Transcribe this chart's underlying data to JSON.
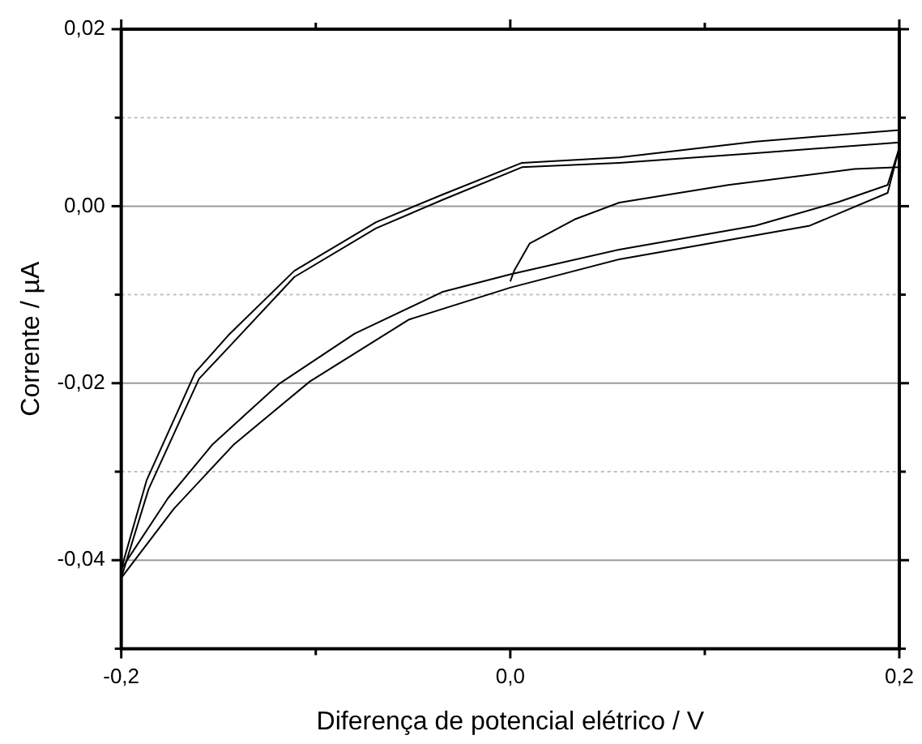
{
  "chart_data": {
    "type": "line",
    "xlabel": "Diferença de potencial elétrico / V",
    "ylabel": "Corrente / µA",
    "xlim": [
      -0.2,
      0.2
    ],
    "ylim": [
      -0.05,
      0.02
    ],
    "xticks": [
      {
        "value": -0.2,
        "label": "-0,2"
      },
      {
        "value": -0.1,
        "label": null
      },
      {
        "value": 0,
        "label": "0,0"
      },
      {
        "value": 0.1,
        "label": null
      },
      {
        "value": 0.2,
        "label": "0,2"
      }
    ],
    "yticks": [
      {
        "value": -0.05,
        "label": null
      },
      {
        "value": -0.04,
        "label": "-0,04"
      },
      {
        "value": -0.03,
        "label": null
      },
      {
        "value": -0.02,
        "label": "-0,02"
      },
      {
        "value": -0.01,
        "label": null
      },
      {
        "value": 0,
        "label": "0,00"
      },
      {
        "value": 0.01,
        "label": null
      },
      {
        "value": 0.02,
        "label": "0,02"
      }
    ],
    "grid": "y",
    "legend": false,
    "marker": "none",
    "line_style": "solid",
    "series": [
      {
        "color": "#000000",
        "x": [
          0,
          0.002,
          0.01,
          0.033,
          0.056,
          0.112,
          0.177,
          0.2
        ],
        "values": [
          -0.0085,
          -0.0073,
          -0.0042,
          -0.0015,
          0.0004,
          0.0024,
          0.0042,
          0.0044
        ]
      },
      {
        "color": "#000000",
        "x": [
          0.2,
          0.194,
          0.169,
          0.126,
          0.056,
          0,
          -0.035,
          -0.08,
          -0.119,
          -0.153,
          -0.176,
          -0.2
        ],
        "values": [
          0.0066,
          0.0024,
          0.0005,
          -0.0022,
          -0.0049,
          -0.0077,
          -0.0097,
          -0.0144,
          -0.0201,
          -0.0269,
          -0.033,
          -0.041
        ]
      },
      {
        "color": "#000000",
        "x": [
          0.2,
          0.194,
          0.154,
          0.056,
          0,
          -0.052,
          -0.103,
          -0.142,
          -0.173,
          -0.2
        ],
        "values": [
          0.0066,
          0.0015,
          -0.0022,
          -0.006,
          -0.0092,
          -0.0128,
          -0.0198,
          -0.0269,
          -0.0342,
          -0.042
        ]
      },
      {
        "color": "#000000",
        "x": [
          -0.2,
          -0.187,
          -0.162,
          -0.145,
          -0.111,
          -0.069,
          -0.035,
          0.006,
          0.056,
          0.126,
          0.2
        ],
        "values": [
          -0.041,
          -0.031,
          -0.0188,
          -0.0146,
          -0.0073,
          -0.0018,
          0.0013,
          0.0049,
          0.0055,
          0.0073,
          0.0086
        ]
      },
      {
        "color": "#000000",
        "x": [
          -0.2,
          -0.186,
          -0.16,
          -0.145,
          -0.111,
          -0.069,
          -0.035,
          0.006,
          0.056,
          0.126,
          0.2
        ],
        "values": [
          -0.042,
          -0.032,
          -0.0195,
          -0.016,
          -0.008,
          -0.0025,
          0.0007,
          0.0044,
          0.0049,
          0.006,
          0.0072
        ]
      }
    ]
  }
}
